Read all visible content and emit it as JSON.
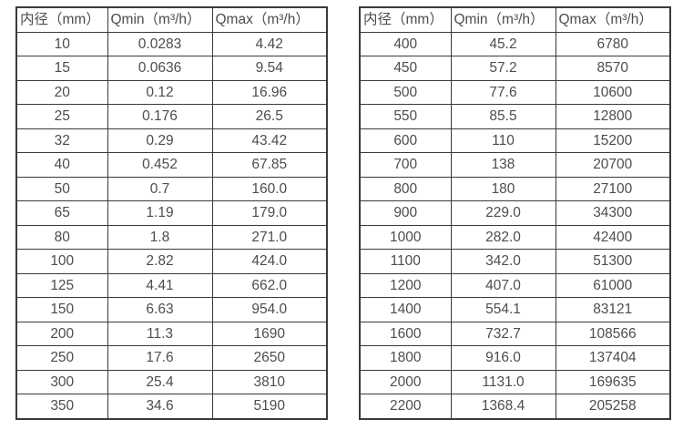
{
  "page": {
    "background_color": "#ffffff",
    "text_color": "#4d4d4d",
    "border_color": "#3a3a3a"
  },
  "tables": [
    {
      "name": "flow-table-small-diameters",
      "headers": [
        "内径（mm）",
        "Qmin（m³/h）",
        "Qmax（m³/h）"
      ],
      "rows": [
        [
          "10",
          "0.0283",
          "4.42"
        ],
        [
          "15",
          "0.0636",
          "9.54"
        ],
        [
          "20",
          "0.12",
          "16.96"
        ],
        [
          "25",
          "0.176",
          "26.5"
        ],
        [
          "32",
          "0.29",
          "43.42"
        ],
        [
          "40",
          "0.452",
          "67.85"
        ],
        [
          "50",
          "0.7",
          "160.0"
        ],
        [
          "65",
          "1.19",
          "179.0"
        ],
        [
          "80",
          "1.8",
          "271.0"
        ],
        [
          "100",
          "2.82",
          "424.0"
        ],
        [
          "125",
          "4.41",
          "662.0"
        ],
        [
          "150",
          "6.63",
          "954.0"
        ],
        [
          "200",
          "11.3",
          "1690"
        ],
        [
          "250",
          "17.6",
          "2650"
        ],
        [
          "300",
          "25.4",
          "3810"
        ],
        [
          "350",
          "34.6",
          "5190"
        ]
      ]
    },
    {
      "name": "flow-table-large-diameters",
      "headers": [
        "内径（mm）",
        "Qmin（m³/h）",
        "Qmax（m³/h）"
      ],
      "rows": [
        [
          "400",
          "45.2",
          "6780"
        ],
        [
          "450",
          "57.2",
          "8570"
        ],
        [
          "500",
          "77.6",
          "10600"
        ],
        [
          "550",
          "85.5",
          "12800"
        ],
        [
          "600",
          "110",
          "15200"
        ],
        [
          "700",
          "138",
          "20700"
        ],
        [
          "800",
          "180",
          "27100"
        ],
        [
          "900",
          "229.0",
          "34300"
        ],
        [
          "1000",
          "282.0",
          "42400"
        ],
        [
          "1100",
          "342.0",
          "51300"
        ],
        [
          "1200",
          "407.0",
          "61000"
        ],
        [
          "1400",
          "554.1",
          "83121"
        ],
        [
          "1600",
          "732.7",
          "108566"
        ],
        [
          "1800",
          "916.0",
          "137404"
        ],
        [
          "2000",
          "1131.0",
          "169635"
        ],
        [
          "2200",
          "1368.4",
          "205258"
        ]
      ]
    }
  ]
}
